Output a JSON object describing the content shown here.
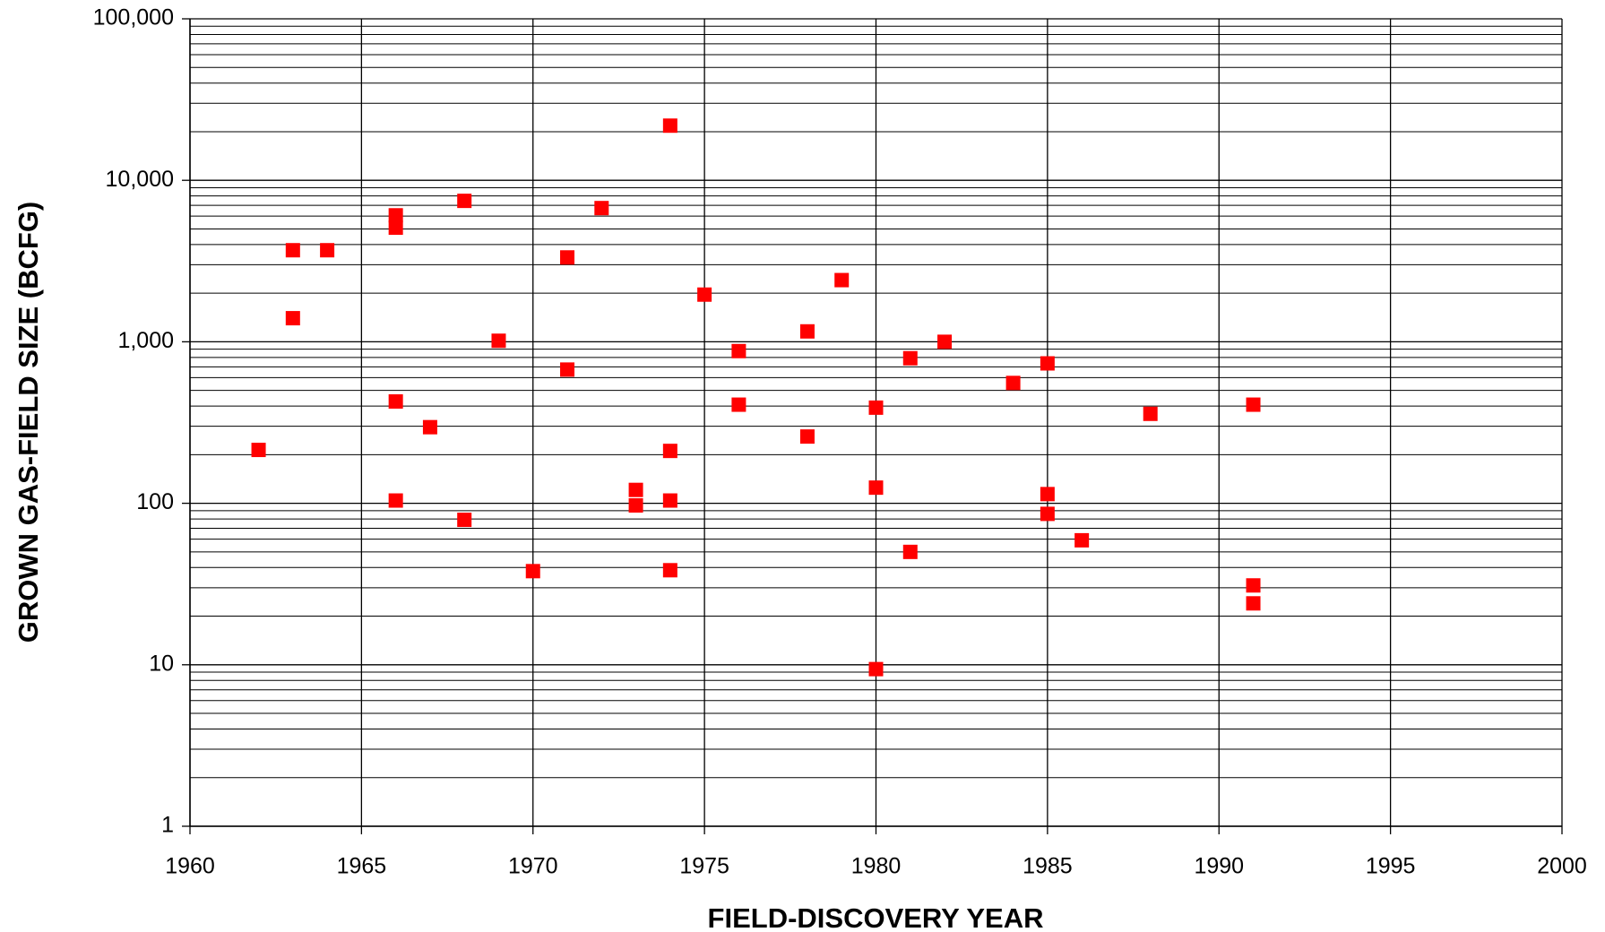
{
  "chart_data": {
    "type": "scatter",
    "x_label": "FIELD-DISCOVERY YEAR",
    "y_label": "GROWN GAS-FIELD SIZE (BCFG)",
    "log_y": true,
    "grid": true,
    "minor_grid": true,
    "color": "#ff0000",
    "xlim": [
      1960,
      2000
    ],
    "xticks": [
      1960,
      1965,
      1970,
      1975,
      1980,
      1985,
      1990,
      1995,
      2000
    ],
    "ylim": [
      1,
      100000
    ],
    "yticks": [
      1,
      10,
      100,
      {
        "value": 1000,
        "label": "1,000"
      },
      {
        "value": 10000,
        "label": "10,000"
      },
      {
        "value": 100000,
        "label": "100,000"
      }
    ],
    "x": [
      1962,
      1963,
      1963,
      1964,
      1966,
      1966,
      1966,
      1966,
      1967,
      1968,
      1968,
      1969,
      1970,
      1971,
      1971,
      1972,
      1973,
      1973,
      1974,
      1974,
      1974,
      1974,
      1975,
      1976,
      1976,
      1978,
      1978,
      1979,
      1980,
      1980,
      1980,
      1981,
      1981,
      1982,
      1984,
      1985,
      1985,
      1985,
      1986,
      1988,
      1991,
      1991,
      1991
    ],
    "values": [
      214,
      3690,
      1400,
      3690,
      6070,
      5090,
      427,
      104,
      296,
      7460,
      79,
      1015,
      38,
      3330,
      673,
      6730,
      121,
      97,
      21800,
      211,
      104,
      38.5,
      1960,
      876,
      408,
      1160,
      259,
      2410,
      391,
      125,
      9.4,
      791,
      50,
      1000,
      556,
      735,
      114,
      86,
      59,
      358,
      408,
      31,
      24
    ]
  }
}
